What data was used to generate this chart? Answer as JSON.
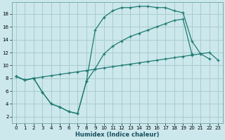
{
  "xlabel": "Humidex (Indice chaleur)",
  "bg_color": "#cce8ec",
  "grid_color": "#a8cccc",
  "line_color": "#1e7a72",
  "xlim": [
    -0.5,
    23.5
  ],
  "ylim": [
    1.0,
    19.8
  ],
  "xticks": [
    0,
    1,
    2,
    3,
    4,
    5,
    6,
    7,
    8,
    9,
    10,
    11,
    12,
    13,
    14,
    15,
    16,
    17,
    18,
    19,
    20,
    21,
    22,
    23
  ],
  "yticks": [
    2,
    4,
    6,
    8,
    10,
    12,
    14,
    16,
    18
  ],
  "curve1_x": [
    0,
    1,
    2,
    3,
    4,
    5,
    6,
    7,
    8,
    9,
    10,
    11,
    12,
    13,
    14,
    15,
    16,
    17,
    18,
    19,
    20,
    21,
    22,
    23
  ],
  "curve1_y": [
    8.3,
    7.7,
    8.0,
    8.2,
    8.4,
    8.6,
    8.8,
    9.0,
    9.2,
    9.4,
    9.6,
    9.8,
    10.0,
    10.2,
    10.4,
    10.6,
    10.8,
    11.0,
    11.2,
    11.4,
    11.6,
    11.8,
    12.0,
    10.8
  ],
  "curve2_x": [
    0,
    1,
    2,
    3,
    4,
    5,
    6,
    7,
    8,
    9,
    10,
    11,
    12,
    13,
    14,
    15,
    16,
    17,
    18,
    19,
    20,
    21,
    22,
    23
  ],
  "curve2_y": [
    8.3,
    7.7,
    8.0,
    5.8,
    4.0,
    3.5,
    2.8,
    2.5,
    7.5,
    9.5,
    11.8,
    13.0,
    13.8,
    14.5,
    15.0,
    15.5,
    16.0,
    16.5,
    17.0,
    17.2,
    11.8,
    null,
    null,
    null
  ],
  "curve3_x": [
    0,
    1,
    2,
    3,
    4,
    5,
    6,
    7,
    8,
    9,
    10,
    11,
    12,
    13,
    14,
    15,
    16,
    17,
    18,
    19,
    20,
    21,
    22,
    23
  ],
  "curve3_y": [
    8.3,
    7.7,
    8.0,
    5.8,
    4.0,
    3.5,
    2.8,
    2.5,
    7.5,
    15.5,
    17.5,
    18.5,
    19.0,
    19.0,
    19.2,
    19.2,
    19.0,
    19.0,
    18.5,
    18.2,
    13.8,
    11.8,
    11.0,
    null
  ]
}
